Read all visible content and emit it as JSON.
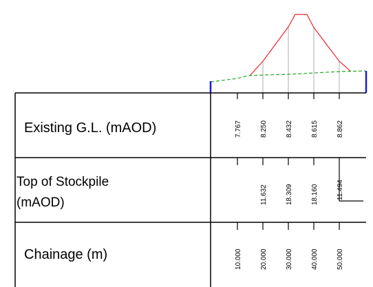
{
  "rows": {
    "existing_gl_label": "Existing G.L. (mAOD)",
    "stockpile_label_line1": "Top of Stockpile",
    "stockpile_label_line2": "(mAOD)",
    "chainage_label": "Chainage (m)"
  },
  "existing_gl_values": [
    "7.767",
    "8.250",
    "8.432",
    "8.615",
    "8.862"
  ],
  "stockpile_values": [
    "11.632",
    "18.309",
    "18.160",
    "11.494"
  ],
  "chainage_values": [
    "10.000",
    "20.000",
    "30.000",
    "40.000",
    "50.000"
  ],
  "colors": {
    "stockpile_line": "#e8262d",
    "ground_line": "#22aa22",
    "drop_lines": "#c8c8c8",
    "frame": "#000000",
    "end_markers": "#1a1adb"
  }
}
